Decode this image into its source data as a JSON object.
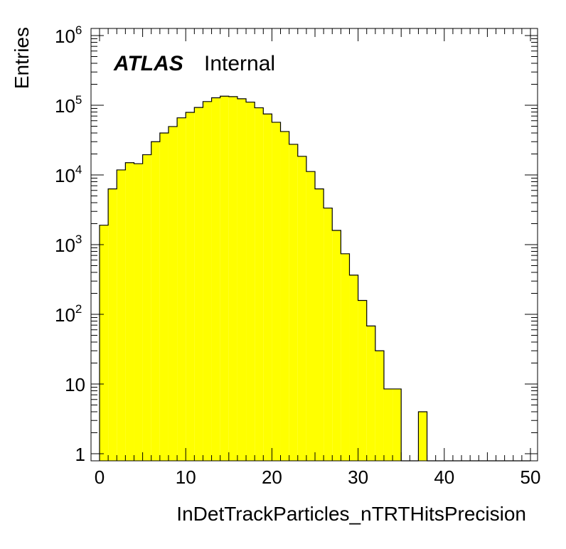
{
  "chart_data": {
    "type": "bar",
    "subtype": "histogram",
    "xlabel": "InDetTrackParticles_nTRTHitsPrecision",
    "ylabel": "Entries",
    "annotation_bold": "ATLAS",
    "annotation_text": "Internal",
    "xlim": [
      0,
      50
    ],
    "ylim": [
      0.8,
      1300000
    ],
    "yscale": "log",
    "grid": false,
    "legend": "none",
    "fill_color": "#ffff00",
    "edge_color": "#000000",
    "bin_width": 1,
    "bins": [
      0,
      1,
      2,
      3,
      4,
      5,
      6,
      7,
      8,
      9,
      10,
      11,
      12,
      13,
      14,
      15,
      16,
      17,
      18,
      19,
      20,
      21,
      22,
      23,
      24,
      25,
      26,
      27,
      28,
      29,
      30,
      31,
      32,
      33,
      34,
      35,
      36,
      37,
      38,
      39,
      40,
      41,
      42,
      43,
      44,
      45,
      46,
      47,
      48,
      49
    ],
    "values": [
      1900,
      6300,
      11800,
      15000,
      14500,
      19500,
      30000,
      40000,
      49500,
      66000,
      79000,
      93000,
      113000,
      128000,
      135000,
      133000,
      124000,
      111000,
      92000,
      75000,
      57000,
      42000,
      27500,
      18500,
      11200,
      6300,
      3350,
      1600,
      740,
      365,
      158,
      68,
      30,
      8.5,
      8.5,
      0,
      0,
      4,
      0,
      0,
      0,
      0,
      0,
      0,
      0,
      0,
      0,
      0,
      0,
      0
    ],
    "x_ticks": [
      "0",
      "10",
      "20",
      "30",
      "40",
      "50"
    ],
    "y_ticks": [
      {
        "base": "1",
        "exp": ""
      },
      {
        "base": "10",
        "exp": ""
      },
      {
        "base": "10",
        "exp": "2"
      },
      {
        "base": "10",
        "exp": "3"
      },
      {
        "base": "10",
        "exp": "4"
      },
      {
        "base": "10",
        "exp": "5"
      },
      {
        "base": "10",
        "exp": "6"
      }
    ]
  }
}
